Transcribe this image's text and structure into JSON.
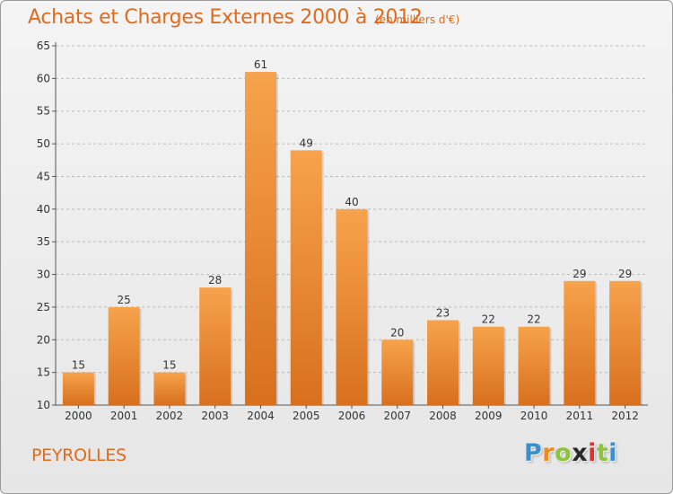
{
  "title": "Achats et Charges Externes 2000 à 2012",
  "subtitle": "(en milliers d'€)",
  "commune": "PEYROLLES",
  "logo": {
    "letters": [
      "P",
      "r",
      "o",
      "x",
      "i",
      "t",
      "i"
    ],
    "colors": [
      "#3a8fd0",
      "#f08a1c",
      "#8cc43c",
      "#2a2a2a",
      "#e0302c",
      "#8cc43c",
      "#3a8fd0"
    ]
  },
  "colors": {
    "title": "#e06b1c",
    "bar_light": "#f7a24c",
    "bar_dark": "#d8701e",
    "grid": "#bbbbbb"
  },
  "chart_data": {
    "type": "bar",
    "title": "Achats et Charges Externes 2000 à 2012",
    "subtitle": "(en milliers d'€)",
    "categories": [
      "2000",
      "2001",
      "2002",
      "2003",
      "2004",
      "2005",
      "2006",
      "2007",
      "2008",
      "2009",
      "2010",
      "2011",
      "2012"
    ],
    "values": [
      15,
      25,
      15,
      28,
      61,
      49,
      40,
      20,
      23,
      22,
      22,
      29,
      29
    ],
    "ylim": [
      10,
      65
    ],
    "yticks": [
      10,
      15,
      20,
      25,
      30,
      35,
      40,
      45,
      50,
      55,
      60,
      65
    ],
    "grid": true,
    "xlabel": "",
    "ylabel": ""
  }
}
